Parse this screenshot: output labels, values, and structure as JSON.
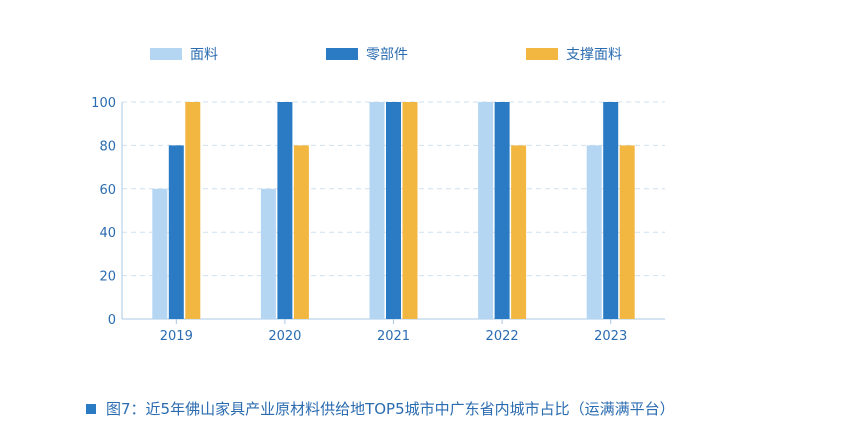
{
  "chart_data": {
    "type": "bar",
    "categories": [
      "2019",
      "2020",
      "2021",
      "2022",
      "2023"
    ],
    "series": [
      {
        "name": "面料",
        "color": "#b5d6f2",
        "values": [
          60,
          60,
          100,
          100,
          80
        ]
      },
      {
        "name": "零部件",
        "color": "#2a7bc4",
        "values": [
          80,
          100,
          100,
          100,
          100
        ]
      },
      {
        "name": "支撑面料",
        "color": "#f2b740",
        "values": [
          100,
          80,
          100,
          80,
          80
        ]
      }
    ],
    "ylim": [
      0,
      100
    ],
    "yticks": [
      0,
      20,
      40,
      60,
      80,
      100
    ],
    "grid": true,
    "legend": "top"
  },
  "caption": "图7：近5年佛山家具产业原材料供给地TOP5城市中广东省内城市占比（运满满平台）"
}
